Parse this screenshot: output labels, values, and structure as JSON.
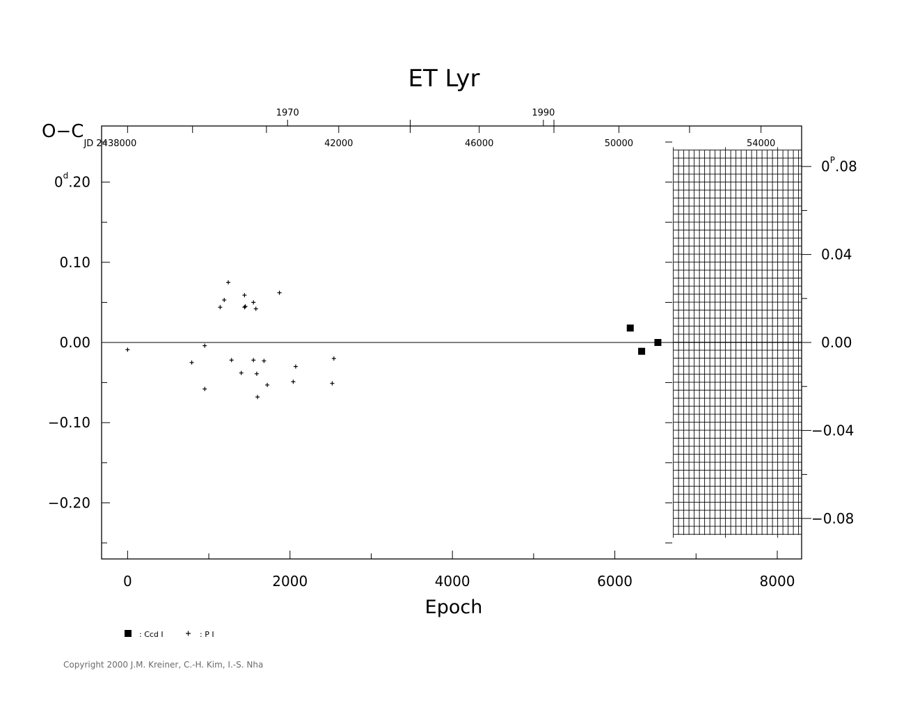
{
  "chart_data": {
    "type": "scatter",
    "title": "ET  Lyr",
    "ylabel": "O−C",
    "xlabel": "Epoch",
    "xlim": [
      -320,
      8300
    ],
    "ylim": [
      -0.27,
      0.27
    ],
    "y_ticks": [
      0.2,
      0.1,
      0.0,
      -0.1,
      -0.2
    ],
    "y_tick_labels": [
      "0.20",
      "0.10",
      "0.00",
      "−0.10",
      "−0.20"
    ],
    "y_unit_sup": "d",
    "y_first_tick_whole": "0",
    "y_first_tick_frac": ".20",
    "x_ticks": [
      0,
      2000,
      4000,
      6000,
      8000
    ],
    "x_tick_labels": [
      "0",
      "2000",
      "4000",
      "6000",
      "8000"
    ],
    "right_ticks_phase": [
      0.08,
      0.04,
      0.0,
      -0.04,
      -0.08
    ],
    "right_tick_labels": [
      "0.08",
      "0.04",
      "0.00",
      "−0.04",
      "−0.08"
    ],
    "right_unit_sup": "P",
    "right_first_tick_whole": "0",
    "right_first_tick_frac": ".08",
    "phase_factor": 0.3645,
    "top_years": [
      {
        "epoch": 1970,
        "label": "1970"
      },
      {
        "epoch": 5120,
        "label": "1990"
      }
    ],
    "top_jd_label_prefix": "JD  2438000",
    "top_jd": [
      {
        "epoch": 900,
        "label": "JD  2438000"
      },
      {
        "epoch": 2600,
        "label": "42000"
      },
      {
        "epoch": 4330,
        "label": "46000"
      },
      {
        "epoch": 6050,
        "label": "50000"
      },
      {
        "epoch": 7800,
        "label": "54000"
      }
    ],
    "top_minor_ticks": [
      0,
      800,
      1710,
      2600,
      3480,
      4330,
      5250,
      6050,
      6920,
      7800
    ],
    "hatch_region": {
      "x_from": 6720,
      "y_from": -0.24,
      "y_to": 0.24
    },
    "series": [
      {
        "name": ": Ccd  I",
        "marker": "square",
        "points": [
          [
            6190,
            0.018
          ],
          [
            6330,
            -0.011
          ],
          [
            6530,
            0.0
          ]
        ]
      },
      {
        "name": ": P  I",
        "marker": "plus",
        "points": [
          [
            0,
            -0.009
          ],
          [
            790,
            -0.025
          ],
          [
            950,
            -0.004
          ],
          [
            950,
            -0.058
          ],
          [
            1140,
            0.044
          ],
          [
            1190,
            0.053
          ],
          [
            1240,
            0.075
          ],
          [
            1280,
            -0.022
          ],
          [
            1400,
            -0.038
          ],
          [
            1440,
            0.059
          ],
          [
            1440,
            0.044
          ],
          [
            1450,
            0.045
          ],
          [
            1550,
            0.05
          ],
          [
            1550,
            -0.022
          ],
          [
            1580,
            0.042
          ],
          [
            1590,
            -0.039
          ],
          [
            1600,
            -0.068
          ],
          [
            1680,
            -0.023
          ],
          [
            1720,
            -0.053
          ],
          [
            1870,
            0.062
          ],
          [
            2040,
            -0.049
          ],
          [
            2070,
            -0.03
          ],
          [
            2520,
            -0.051
          ],
          [
            2540,
            -0.02
          ]
        ]
      }
    ]
  },
  "copyright": "Copyright 2000 J.M. Kreiner, C.-H. Kim, I.-S. Nha"
}
